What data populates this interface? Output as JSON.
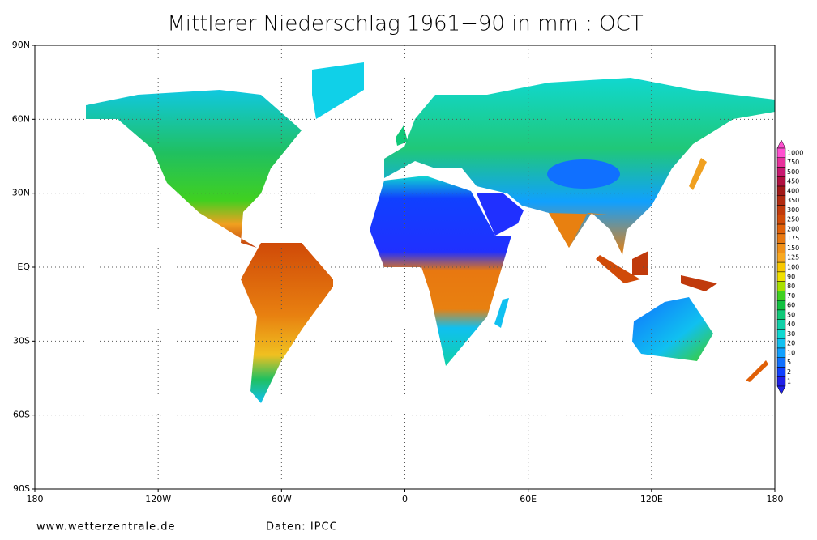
{
  "map": {
    "title": "Mittlerer Niederschlag 1961−90 in mm : OCT",
    "lon_ticks": [
      {
        "value": -180,
        "label": "180"
      },
      {
        "value": -120,
        "label": "120W"
      },
      {
        "value": -60,
        "label": "60W"
      },
      {
        "value": 0,
        "label": "0"
      },
      {
        "value": 60,
        "label": "60E"
      },
      {
        "value": 120,
        "label": "120E"
      },
      {
        "value": 180,
        "label": "180"
      }
    ],
    "lat_ticks": [
      {
        "value": 90,
        "label": "90N"
      },
      {
        "value": 60,
        "label": "60N"
      },
      {
        "value": 30,
        "label": "30N"
      },
      {
        "value": 0,
        "label": "EQ"
      },
      {
        "value": -30,
        "label": "30S"
      },
      {
        "value": -60,
        "label": "60S"
      },
      {
        "value": -90,
        "label": "90S"
      }
    ],
    "colorbar": {
      "levels": [
        1000,
        750,
        500,
        450,
        400,
        350,
        300,
        250,
        200,
        175,
        150,
        125,
        100,
        90,
        80,
        70,
        60,
        50,
        40,
        30,
        20,
        10,
        5,
        2,
        1
      ],
      "colors": [
        "#ff50d0",
        "#e8309c",
        "#c81870",
        "#b01040",
        "#a01818",
        "#b02a10",
        "#c03a0c",
        "#d04a08",
        "#e06008",
        "#e87810",
        "#f09018",
        "#f8a820",
        "#f8c800",
        "#f0e000",
        "#a8e000",
        "#40d020",
        "#10c040",
        "#10c878",
        "#10d0a8",
        "#10d8d0",
        "#10c0f0",
        "#10a0ff",
        "#1070ff",
        "#1040ff",
        "#2020e8"
      ]
    },
    "footer_left": "www.wetterzentrale.de",
    "footer_right": "Daten: IPCC"
  }
}
